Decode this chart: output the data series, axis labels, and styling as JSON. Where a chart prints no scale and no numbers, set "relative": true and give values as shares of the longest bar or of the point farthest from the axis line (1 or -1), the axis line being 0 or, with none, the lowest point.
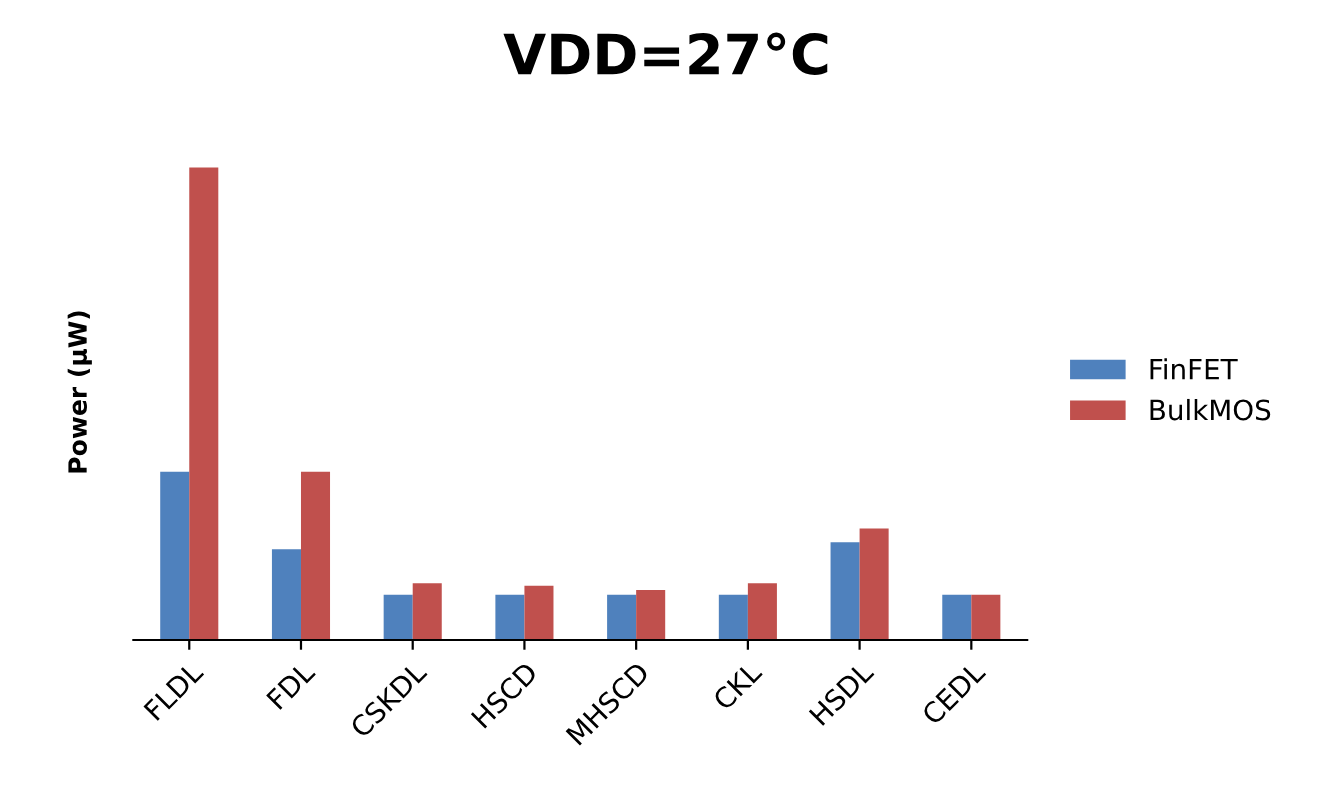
{
  "chart_data": {
    "type": "bar",
    "title": "VDD=27°C",
    "ylabel": "Power (µW)",
    "relative": true,
    "legend": "right",
    "grid": false,
    "categories": [
      "FLDL",
      "FDL",
      "CSKDL",
      "HSCD",
      "MHSCD",
      "CKL",
      "HSDL",
      "CEDL"
    ],
    "series": [
      {
        "name": "FinFET",
        "color": "#4f81bd",
        "values": [
          0.356,
          0.192,
          0.096,
          0.096,
          0.096,
          0.096,
          0.207,
          0.096
        ]
      },
      {
        "name": "BulkMOS",
        "color": "#c0504d",
        "values": [
          1,
          0.356,
          0.12,
          0.115,
          0.106,
          0.12,
          0.236,
          0.096
        ]
      }
    ]
  }
}
